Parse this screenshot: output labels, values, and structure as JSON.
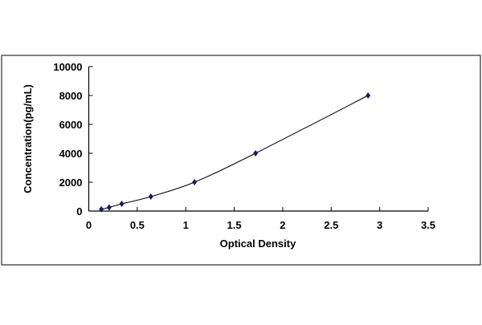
{
  "chart_data": {
    "type": "scatter",
    "title": "",
    "xlabel": "Optical Density",
    "ylabel": "Concentration(pg/mL)",
    "xlim": [
      0,
      3.5
    ],
    "ylim": [
      0,
      10000
    ],
    "x_ticks": [
      "0",
      "0.5",
      "1",
      "1.5",
      "2",
      "2.5",
      "3",
      "3.5"
    ],
    "y_ticks": [
      "0",
      "2000",
      "4000",
      "6000",
      "8000",
      "10000"
    ],
    "grid": false,
    "legend": "none",
    "trendline": "smooth curve",
    "marker": "diamond",
    "colors": {
      "marker": "#1a1a5e",
      "line": "#000000"
    },
    "series": [
      {
        "x": [
          0.13,
          0.21,
          0.34,
          0.64,
          1.09,
          1.72,
          2.88
        ],
        "y": [
          125,
          250,
          500,
          1000,
          2000,
          4000,
          8000
        ]
      }
    ]
  }
}
